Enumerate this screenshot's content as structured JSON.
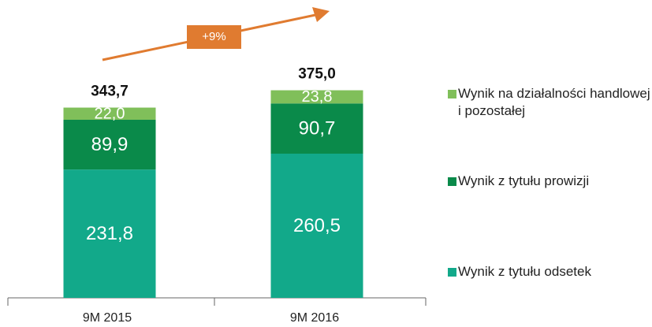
{
  "chart_data": {
    "type": "stacked_bar",
    "categories": [
      "9M 2015",
      "9M 2016"
    ],
    "series": [
      {
        "name": "Wynik z tytułu odsetek",
        "color": "#12a98a",
        "values": [
          231.8,
          260.5
        ],
        "value_labels": [
          "231,8",
          "260,5"
        ]
      },
      {
        "name": "Wynik z tytułu prowizji",
        "color": "#0a8a4a",
        "values": [
          89.9,
          90.7
        ],
        "value_labels": [
          "89,9",
          "90,7"
        ]
      },
      {
        "name": "Wynik na działalności handlowej i pozostałej",
        "color": "#80bf5a",
        "values": [
          22.0,
          23.8
        ],
        "value_labels": [
          "22,0",
          "23,8"
        ]
      }
    ],
    "totals": [
      343.7,
      375.0
    ],
    "total_labels": [
      "343,7",
      "375,0"
    ],
    "annotation": "+9%",
    "annotation_color": "#e07b30",
    "ylim": [
      0,
      400
    ]
  }
}
